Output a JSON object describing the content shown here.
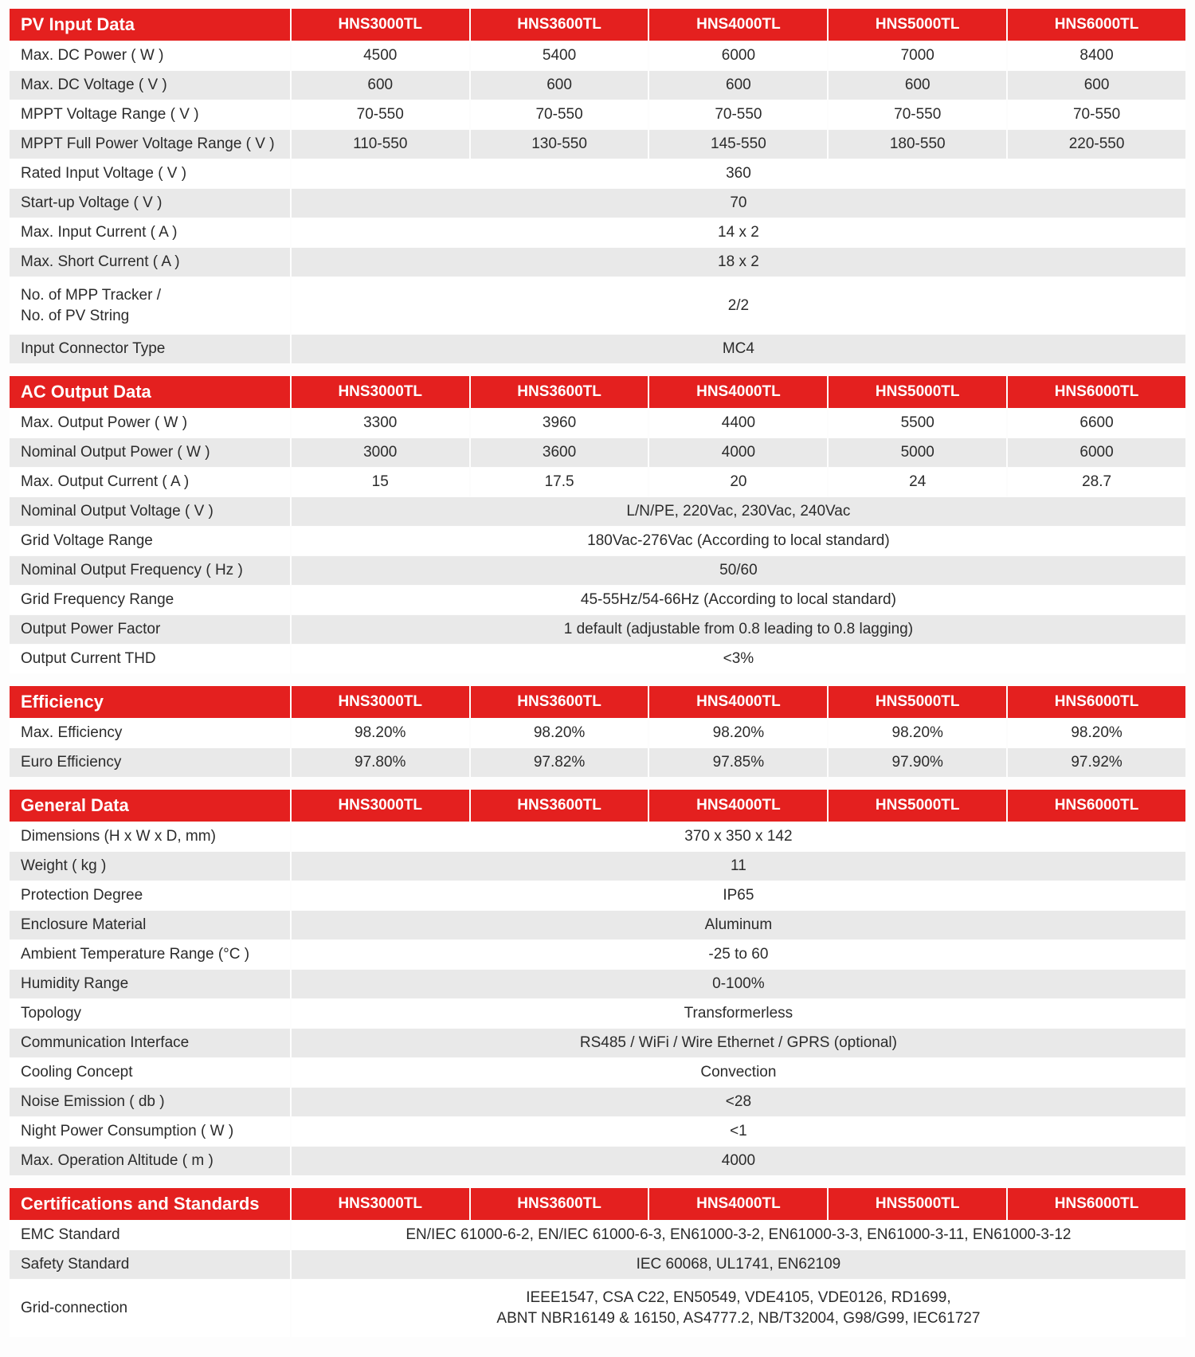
{
  "colors": {
    "header_bg": "#e4201f",
    "header_text": "#ffffff",
    "row_shaded": "#e9e9e9",
    "row_plain": "#ffffff",
    "text": "#2b2b2b",
    "page_bg": "#fdfdfd"
  },
  "column_widths": {
    "label": "24%",
    "model": "15.2%"
  },
  "font_sizes": {
    "section_title": 22,
    "header": 19,
    "cell": 19
  },
  "models": [
    "HNS3000TL",
    "HNS3600TL",
    "HNS4000TL",
    "HNS5000TL",
    "HNS6000TL"
  ],
  "sections": [
    {
      "title": "PV Input Data",
      "rows": [
        {
          "label": "Max. DC Power ( W )",
          "values": [
            "4500",
            "5400",
            "6000",
            "7000",
            "8400"
          ],
          "shaded": false
        },
        {
          "label": "Max. DC Voltage ( V )",
          "values": [
            "600",
            "600",
            "600",
            "600",
            "600"
          ],
          "shaded": true
        },
        {
          "label": "MPPT Voltage Range ( V )",
          "values": [
            "70-550",
            "70-550",
            "70-550",
            "70-550",
            "70-550"
          ],
          "shaded": false
        },
        {
          "label": "MPPT Full Power Voltage Range ( V )",
          "values": [
            "110-550",
            "130-550",
            "145-550",
            "180-550",
            "220-550"
          ],
          "shaded": true
        },
        {
          "label": "Rated Input Voltage ( V )",
          "merged": "360",
          "shaded": false
        },
        {
          "label": "Start-up Voltage ( V )",
          "merged": "70",
          "shaded": true
        },
        {
          "label": "Max. Input Current ( A )",
          "merged": "14 x 2",
          "shaded": false
        },
        {
          "label": "Max. Short Current ( A )",
          "merged": "18 x 2",
          "shaded": true
        },
        {
          "label": "No. of MPP Tracker /\nNo. of PV String",
          "merged": "2/2",
          "shaded": false,
          "tall": true
        },
        {
          "label": "Input Connector Type",
          "merged": "MC4",
          "shaded": true
        }
      ]
    },
    {
      "title": "AC Output Data",
      "rows": [
        {
          "label": "Max. Output Power ( W )",
          "values": [
            "3300",
            "3960",
            "4400",
            "5500",
            "6600"
          ],
          "shaded": false
        },
        {
          "label": "Nominal Output Power ( W )",
          "values": [
            "3000",
            "3600",
            "4000",
            "5000",
            "6000"
          ],
          "shaded": true
        },
        {
          "label": "Max. Output Current ( A )",
          "values": [
            "15",
            "17.5",
            "20",
            "24",
            "28.7"
          ],
          "shaded": false
        },
        {
          "label": "Nominal Output Voltage ( V )",
          "merged": "L/N/PE, 220Vac, 230Vac, 240Vac",
          "shaded": true
        },
        {
          "label": "Grid Voltage Range",
          "merged": "180Vac-276Vac (According to local standard)",
          "shaded": false
        },
        {
          "label": "Nominal Output Frequency ( Hz )",
          "merged": "50/60",
          "shaded": true
        },
        {
          "label": "Grid Frequency Range",
          "merged": "45-55Hz/54-66Hz (According to local standard)",
          "shaded": false
        },
        {
          "label": "Output Power Factor",
          "merged": "1 default (adjustable from 0.8 leading to 0.8 lagging)",
          "shaded": true
        },
        {
          "label": "Output Current THD",
          "merged": "<3%",
          "shaded": false
        }
      ]
    },
    {
      "title": "Efficiency",
      "rows": [
        {
          "label": "Max. Efficiency",
          "values": [
            "98.20%",
            "98.20%",
            "98.20%",
            "98.20%",
            "98.20%"
          ],
          "shaded": false
        },
        {
          "label": "Euro Efficiency",
          "values": [
            "97.80%",
            "97.82%",
            "97.85%",
            "97.90%",
            "97.92%"
          ],
          "shaded": true
        }
      ]
    },
    {
      "title": "General Data",
      "rows": [
        {
          "label": "Dimensions (H x W x D, mm)",
          "merged": "370 x 350 x 142",
          "shaded": false
        },
        {
          "label": "Weight ( kg )",
          "merged": "11",
          "shaded": true
        },
        {
          "label": "Protection Degree",
          "merged": "IP65",
          "shaded": false
        },
        {
          "label": "Enclosure Material",
          "merged": "Aluminum",
          "shaded": true
        },
        {
          "label": "Ambient Temperature Range (°C )",
          "merged": "-25 to 60",
          "shaded": false
        },
        {
          "label": "Humidity Range",
          "merged": "0-100%",
          "shaded": true
        },
        {
          "label": "Topology",
          "merged": "Transformerless",
          "shaded": false
        },
        {
          "label": "Communication Interface",
          "merged": "RS485 / WiFi / Wire Ethernet / GPRS (optional)",
          "shaded": true
        },
        {
          "label": "Cooling Concept",
          "merged": "Convection",
          "shaded": false
        },
        {
          "label": "Noise Emission ( db )",
          "merged": "<28",
          "shaded": true
        },
        {
          "label": "Night Power Consumption ( W )",
          "merged": "<1",
          "shaded": false
        },
        {
          "label": "Max. Operation Altitude ( m )",
          "merged": "4000",
          "shaded": true
        }
      ]
    },
    {
      "title": "Certifications and Standards",
      "rows": [
        {
          "label": "EMC Standard",
          "merged": "EN/IEC 61000-6-2, EN/IEC 61000-6-3, EN61000-3-2, EN61000-3-3, EN61000-3-11, EN61000-3-12",
          "shaded": false
        },
        {
          "label": "Safety Standard",
          "merged": "IEC 60068, UL1741, EN62109",
          "shaded": true
        },
        {
          "label": "Grid-connection",
          "merged": "IEEE1547, CSA C22, EN50549, VDE4105, VDE0126, RD1699,\nABNT NBR16149 & 16150, AS4777.2, NB/T32004, G98/G99, IEC61727",
          "shaded": false,
          "tall": true
        }
      ]
    }
  ]
}
